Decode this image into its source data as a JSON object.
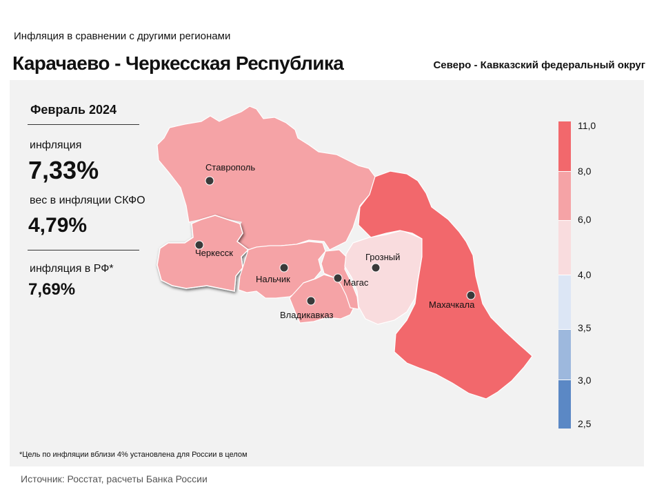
{
  "header": {
    "subtitle": "Инфляция  в сравнении  с другими  регионами",
    "title": "Карачаево - Черкесская Республика",
    "district": "Северо - Кавказский федеральный округ"
  },
  "stats": {
    "period": "Февраль 2024",
    "inflation_label": "инфляция",
    "inflation_value": "7,33%",
    "weight_label": "вес в инфляции  СКФО",
    "weight_value": "4,79%",
    "rf_label": "инфляция  в РФ*",
    "rf_value": "7,69%"
  },
  "regions": [
    {
      "name": "Ставропольский край",
      "city": "Ставрополь",
      "bin": "6,0–8,0",
      "color": "#f5a3a6"
    },
    {
      "name": "Карачаево-Черкесская Республика",
      "city": "Черкесск",
      "bin": "6,0–8,0",
      "color": "#f5a3a6",
      "highlighted": true
    },
    {
      "name": "Кабардино-Балкарская Республика",
      "city": "Нальчик",
      "bin": "6,0–8,0",
      "color": "#f5a3a6"
    },
    {
      "name": "Республика Северная Осетия",
      "city": "Владикавказ",
      "bin": "6,0–8,0",
      "color": "#f5a3a6"
    },
    {
      "name": "Республика Ингушетия",
      "city": "Магас",
      "bin": "6,0–8,0",
      "color": "#f5a3a6"
    },
    {
      "name": "Чеченская Республика",
      "city": "Грозный",
      "bin": "4,0–6,0",
      "color": "#f9dcde"
    },
    {
      "name": "Республика Дагестан",
      "city": "Махачкала",
      "bin": "8,0–11,0",
      "color": "#f2686c"
    }
  ],
  "legend": {
    "ticks": [
      "11,0",
      "8,0",
      "6,0",
      "4,0",
      "3,5",
      "3,0",
      "2,5"
    ],
    "colors": [
      "#f2686c",
      "#f5a3a6",
      "#f9dcde",
      "#dce6f5",
      "#9db8dd",
      "#5b88c5"
    ]
  },
  "footnote": "*Цель по инфляции вблизи 4% установлена для России в целом",
  "source": "Источник: Росстат, расчеты Банка России"
}
